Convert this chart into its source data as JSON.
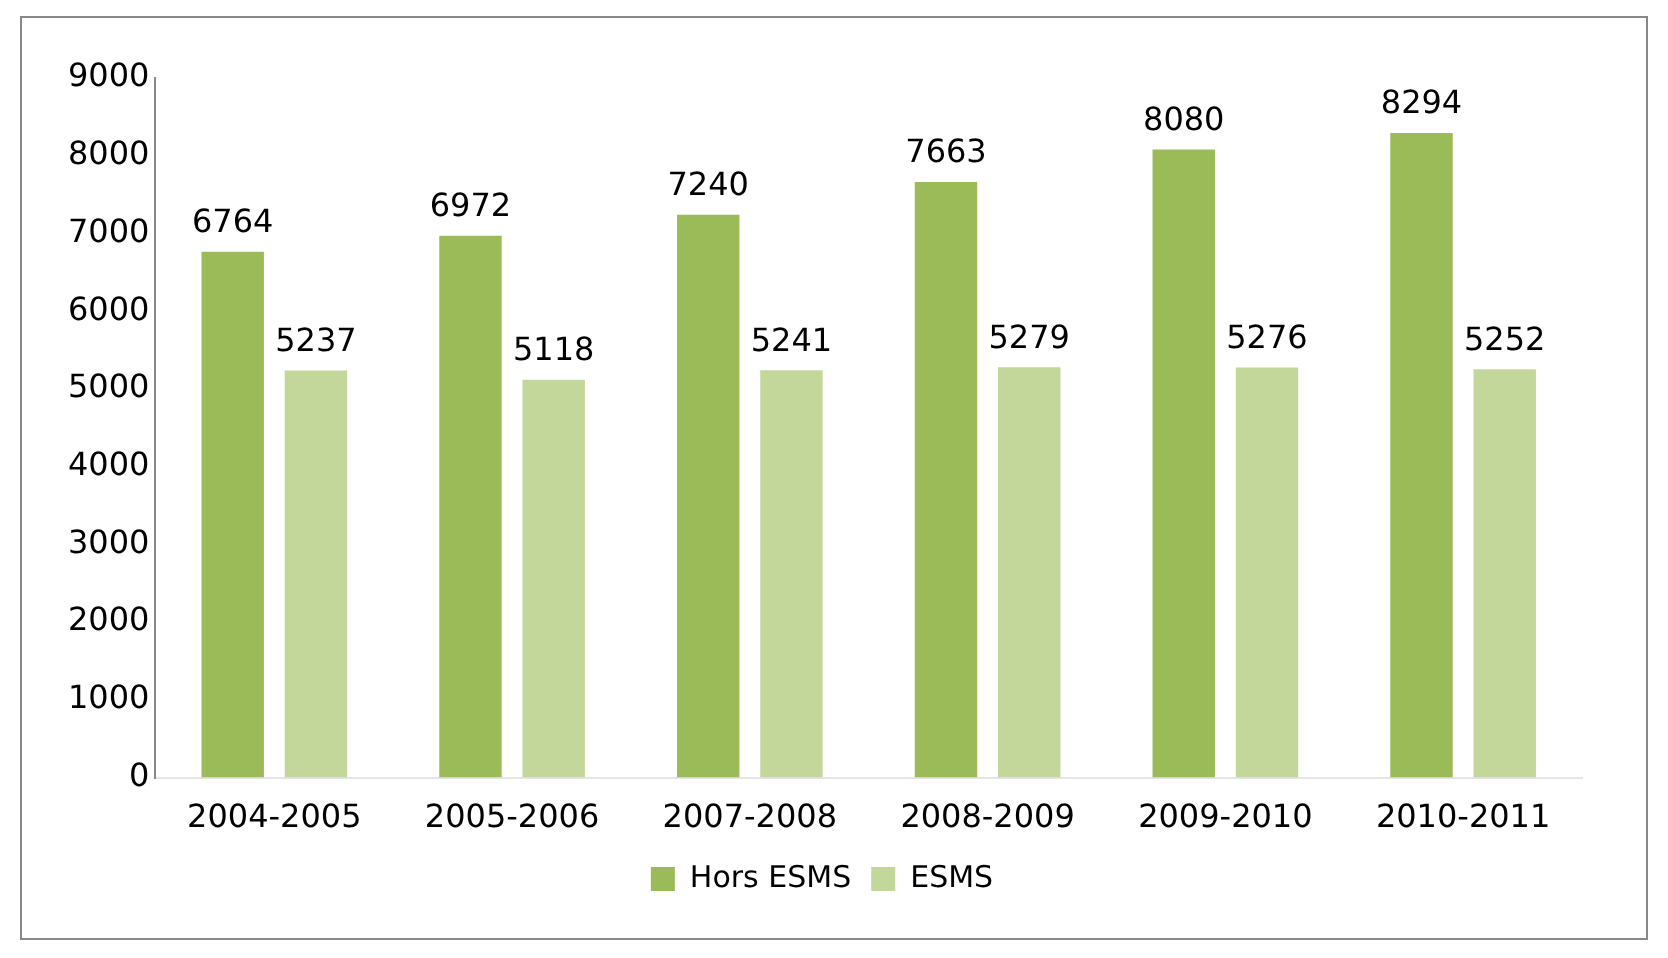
{
  "chart_data": {
    "type": "bar",
    "categories": [
      "2004-2005",
      "2005-2006",
      "2007-2008",
      "2008-2009",
      "2009-2010",
      "2010-2011"
    ],
    "series": [
      {
        "name": "Hors ESMS",
        "color": "#9bbb59",
        "values": [
          6764,
          6972,
          7240,
          7663,
          8080,
          8294
        ]
      },
      {
        "name": "ESMS",
        "color": "#c4d79b",
        "values": [
          5237,
          5118,
          5241,
          5279,
          5276,
          5252
        ]
      }
    ],
    "ylim": [
      0,
      9000
    ],
    "yticks": [
      0,
      1000,
      2000,
      3000,
      4000,
      5000,
      6000,
      7000,
      8000,
      9000
    ],
    "grid": false,
    "legend": "bottom",
    "data_labels": true
  }
}
